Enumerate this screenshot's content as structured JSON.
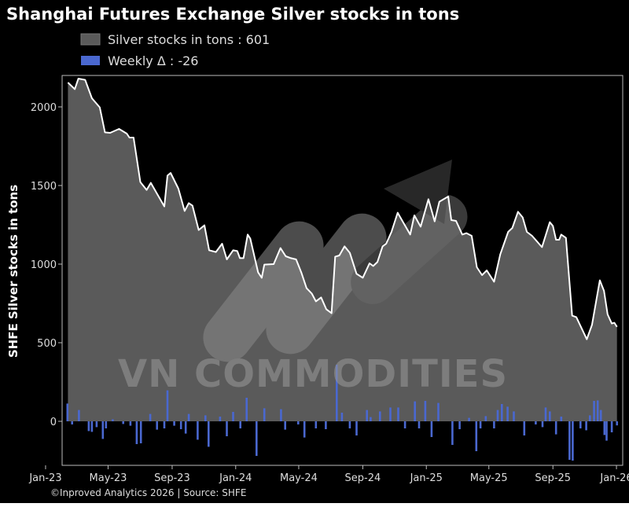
{
  "chart_data": {
    "type": "area",
    "title": "Shanghai Futures Exchange Silver stocks in tons",
    "ylabel": "SHFE Silver stocks in tons",
    "xlabel": "",
    "xlim": [
      "2022-12-23",
      "2026-01-13"
    ],
    "ylim": [
      -280,
      2200
    ],
    "yticks": [
      0,
      500,
      1000,
      1500,
      2000
    ],
    "xticks": [
      {
        "date": "2023-01-01",
        "label": "Jan-23"
      },
      {
        "date": "2023-05-01",
        "label": "May-23"
      },
      {
        "date": "2023-09-01",
        "label": "Sep-23"
      },
      {
        "date": "2024-01-01",
        "label": "Jan-24"
      },
      {
        "date": "2024-05-01",
        "label": "May-24"
      },
      {
        "date": "2024-09-01",
        "label": "Sep-24"
      },
      {
        "date": "2025-01-01",
        "label": "Jan-25"
      },
      {
        "date": "2025-05-01",
        "label": "May-25"
      },
      {
        "date": "2025-09-01",
        "label": "Sep-25"
      },
      {
        "date": "2026-01-01",
        "label": "Jan-26"
      }
    ],
    "grid": false,
    "legend_position": "top",
    "legend": [
      {
        "label": "Silver stocks in tons : 601",
        "color": "#5a5a5a"
      },
      {
        "label": "Weekly Δ : -26",
        "color": "#4a68d0"
      }
    ],
    "series": [
      {
        "name": "Silver stocks in tons",
        "type": "area",
        "color": "#5a5a5a",
        "line_color": "#ffffff",
        "points": [
          [
            "2023-02-13",
            2155
          ],
          [
            "2023-02-26",
            2113
          ],
          [
            "2023-03-05",
            2180
          ],
          [
            "2023-03-18",
            2172
          ],
          [
            "2023-03-31",
            2055
          ],
          [
            "2023-04-15",
            1997
          ],
          [
            "2023-04-25",
            1838
          ],
          [
            "2023-05-05",
            1835
          ],
          [
            "2023-05-22",
            1860
          ],
          [
            "2023-06-06",
            1830
          ],
          [
            "2023-06-11",
            1805
          ],
          [
            "2023-06-19",
            1805
          ],
          [
            "2023-07-02",
            1522
          ],
          [
            "2023-07-14",
            1472
          ],
          [
            "2023-07-22",
            1517
          ],
          [
            "2023-08-17",
            1367
          ],
          [
            "2023-08-23",
            1563
          ],
          [
            "2023-08-29",
            1580
          ],
          [
            "2023-09-13",
            1480
          ],
          [
            "2023-09-25",
            1338
          ],
          [
            "2023-10-03",
            1388
          ],
          [
            "2023-10-10",
            1372
          ],
          [
            "2023-10-22",
            1217
          ],
          [
            "2023-11-02",
            1247
          ],
          [
            "2023-11-11",
            1088
          ],
          [
            "2023-11-24",
            1077
          ],
          [
            "2023-12-06",
            1130
          ],
          [
            "2023-12-15",
            1030
          ],
          [
            "2023-12-27",
            1088
          ],
          [
            "2024-01-04",
            1083
          ],
          [
            "2024-01-09",
            1038
          ],
          [
            "2024-01-16",
            1038
          ],
          [
            "2024-01-24",
            1188
          ],
          [
            "2024-01-29",
            1163
          ],
          [
            "2024-02-13",
            947
          ],
          [
            "2024-02-20",
            913
          ],
          [
            "2024-02-25",
            997
          ],
          [
            "2024-03-14",
            1000
          ],
          [
            "2024-03-27",
            1102
          ],
          [
            "2024-04-06",
            1050
          ],
          [
            "2024-04-16",
            1038
          ],
          [
            "2024-04-26",
            1030
          ],
          [
            "2024-05-06",
            947
          ],
          [
            "2024-05-16",
            847
          ],
          [
            "2024-05-26",
            813
          ],
          [
            "2024-06-03",
            763
          ],
          [
            "2024-06-13",
            788
          ],
          [
            "2024-06-23",
            713
          ],
          [
            "2024-07-03",
            688
          ],
          [
            "2024-07-10",
            1047
          ],
          [
            "2024-07-18",
            1055
          ],
          [
            "2024-07-28",
            1113
          ],
          [
            "2024-08-07",
            1072
          ],
          [
            "2024-08-20",
            938
          ],
          [
            "2024-09-01",
            913
          ],
          [
            "2024-09-14",
            1005
          ],
          [
            "2024-09-21",
            988
          ],
          [
            "2024-09-29",
            1013
          ],
          [
            "2024-10-09",
            1113
          ],
          [
            "2024-10-16",
            1130
          ],
          [
            "2024-10-26",
            1205
          ],
          [
            "2024-11-07",
            1327
          ],
          [
            "2024-11-18",
            1263
          ],
          [
            "2024-12-01",
            1188
          ],
          [
            "2024-12-09",
            1310
          ],
          [
            "2024-12-21",
            1238
          ],
          [
            "2025-01-05",
            1413
          ],
          [
            "2025-01-17",
            1272
          ],
          [
            "2025-01-26",
            1397
          ],
          [
            "2025-02-12",
            1430
          ],
          [
            "2025-02-18",
            1280
          ],
          [
            "2025-02-27",
            1275
          ],
          [
            "2025-03-11",
            1188
          ],
          [
            "2025-03-19",
            1197
          ],
          [
            "2025-03-29",
            1180
          ],
          [
            "2025-04-08",
            980
          ],
          [
            "2025-04-18",
            930
          ],
          [
            "2025-04-27",
            960
          ],
          [
            "2025-05-11",
            888
          ],
          [
            "2025-05-23",
            1063
          ],
          [
            "2025-06-07",
            1205
          ],
          [
            "2025-06-15",
            1230
          ],
          [
            "2025-06-26",
            1333
          ],
          [
            "2025-07-05",
            1297
          ],
          [
            "2025-07-13",
            1205
          ],
          [
            "2025-07-23",
            1180
          ],
          [
            "2025-08-11",
            1108
          ],
          [
            "2025-08-26",
            1267
          ],
          [
            "2025-09-01",
            1243
          ],
          [
            "2025-09-07",
            1155
          ],
          [
            "2025-09-13",
            1155
          ],
          [
            "2025-09-17",
            1188
          ],
          [
            "2025-09-26",
            1167
          ],
          [
            "2025-10-08",
            672
          ],
          [
            "2025-10-16",
            663
          ],
          [
            "2025-11-05",
            522
          ],
          [
            "2025-11-15",
            613
          ],
          [
            "2025-11-30",
            897
          ],
          [
            "2025-12-08",
            830
          ],
          [
            "2025-12-15",
            680
          ],
          [
            "2025-12-23",
            622
          ],
          [
            "2025-12-28",
            627
          ],
          [
            "2026-01-02",
            601
          ]
        ]
      },
      {
        "name": "Weekly Δ",
        "type": "bar",
        "color": "#4a68d0",
        "points": [
          [
            "2023-02-12",
            113
          ],
          [
            "2023-02-21",
            -20
          ],
          [
            "2023-03-06",
            72
          ],
          [
            "2023-03-25",
            -62
          ],
          [
            "2023-03-31",
            -67
          ],
          [
            "2023-04-09",
            -37
          ],
          [
            "2023-04-21",
            -112
          ],
          [
            "2023-04-27",
            -45
          ],
          [
            "2023-05-10",
            13
          ],
          [
            "2023-05-30",
            -17
          ],
          [
            "2023-06-13",
            -28
          ],
          [
            "2023-06-25",
            -145
          ],
          [
            "2023-07-03",
            -140
          ],
          [
            "2023-07-21",
            47
          ],
          [
            "2023-08-03",
            -53
          ],
          [
            "2023-08-17",
            -45
          ],
          [
            "2023-08-23",
            197
          ],
          [
            "2023-09-05",
            -28
          ],
          [
            "2023-09-18",
            -50
          ],
          [
            "2023-09-27",
            -78
          ],
          [
            "2023-10-03",
            47
          ],
          [
            "2023-10-20",
            -117
          ],
          [
            "2023-11-04",
            38
          ],
          [
            "2023-11-10",
            -162
          ],
          [
            "2023-12-02",
            30
          ],
          [
            "2023-12-15",
            -95
          ],
          [
            "2023-12-27",
            60
          ],
          [
            "2024-01-10",
            -45
          ],
          [
            "2024-01-22",
            150
          ],
          [
            "2024-02-10",
            -220
          ],
          [
            "2024-02-25",
            83
          ],
          [
            "2024-03-28",
            77
          ],
          [
            "2024-04-05",
            -53
          ],
          [
            "2024-04-30",
            -20
          ],
          [
            "2024-05-12",
            -103
          ],
          [
            "2024-06-03",
            -45
          ],
          [
            "2024-06-22",
            -50
          ],
          [
            "2024-07-13",
            360
          ],
          [
            "2024-07-23",
            55
          ],
          [
            "2024-08-07",
            -45
          ],
          [
            "2024-08-20",
            -90
          ],
          [
            "2024-09-09",
            72
          ],
          [
            "2024-09-16",
            27
          ],
          [
            "2024-10-04",
            63
          ],
          [
            "2024-10-24",
            88
          ],
          [
            "2024-11-08",
            88
          ],
          [
            "2024-11-21",
            -45
          ],
          [
            "2024-12-10",
            127
          ],
          [
            "2024-12-18",
            -45
          ],
          [
            "2024-12-30",
            130
          ],
          [
            "2025-01-11",
            -100
          ],
          [
            "2025-01-24",
            117
          ],
          [
            "2025-02-20",
            -150
          ],
          [
            "2025-03-06",
            -50
          ],
          [
            "2025-03-24",
            22
          ],
          [
            "2025-04-07",
            -190
          ],
          [
            "2025-04-15",
            -45
          ],
          [
            "2025-04-25",
            33
          ],
          [
            "2025-05-11",
            -45
          ],
          [
            "2025-05-18",
            72
          ],
          [
            "2025-05-26",
            110
          ],
          [
            "2025-06-06",
            93
          ],
          [
            "2025-06-18",
            63
          ],
          [
            "2025-07-08",
            -90
          ],
          [
            "2025-07-30",
            -20
          ],
          [
            "2025-08-12",
            -37
          ],
          [
            "2025-08-18",
            88
          ],
          [
            "2025-08-26",
            63
          ],
          [
            "2025-09-07",
            -83
          ],
          [
            "2025-09-17",
            30
          ],
          [
            "2025-10-03",
            -245
          ],
          [
            "2025-10-09",
            -250
          ],
          [
            "2025-10-24",
            -45
          ],
          [
            "2025-11-04",
            -57
          ],
          [
            "2025-11-11",
            38
          ],
          [
            "2025-11-19",
            130
          ],
          [
            "2025-11-26",
            133
          ],
          [
            "2025-12-02",
            72
          ],
          [
            "2025-12-09",
            -87
          ],
          [
            "2025-12-13",
            -123
          ],
          [
            "2025-12-23",
            -70
          ],
          [
            "2026-01-02",
            -26
          ]
        ]
      }
    ],
    "source": "©Inproved Analytics 2026 | Source: SHFE",
    "watermark": "VN COMMODITIES"
  }
}
